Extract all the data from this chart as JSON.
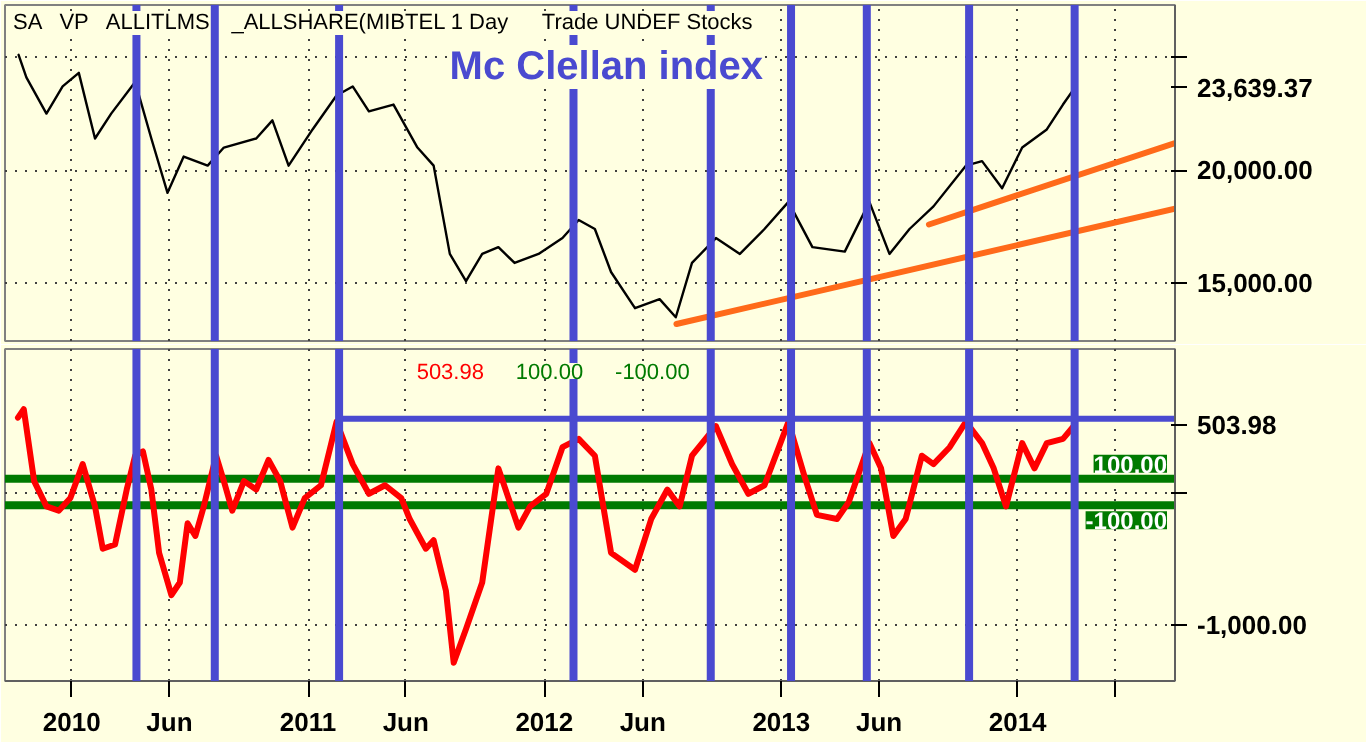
{
  "chart_data": [
    {
      "type": "line",
      "title": "Mc Clellan index",
      "annotations": [
        "SA",
        "VP",
        "ALLITLMS",
        "_ALLSHARE(MIBTEL 1 Day",
        "Trade UNDEF Stocks"
      ],
      "series": [
        {
          "color": "#000000",
          "x": [
            "2009-10-11",
            "2009-10-23",
            "2009-11-23",
            "2009-12-18",
            "2010-01-12",
            "2010-02-06",
            "2010-03-03",
            "2010-04-09",
            "2010-05-04",
            "2010-05-29",
            "2010-06-23",
            "2010-07-30",
            "2010-08-24",
            "2010-10-13",
            "2010-11-07",
            "2010-12-02",
            "2011-01-08",
            "2011-02-14",
            "2011-03-11",
            "2011-04-05",
            "2011-05-13",
            "2011-06-19",
            "2011-07-14",
            "2011-08-08",
            "2011-09-02",
            "2011-09-27",
            "2011-10-22",
            "2011-11-16",
            "2011-12-23",
            "2012-01-29",
            "2012-02-23",
            "2012-03-19",
            "2012-04-13",
            "2012-05-20",
            "2012-06-27",
            "2012-07-22",
            "2012-08-16",
            "2012-09-22",
            "2012-10-29",
            "2012-12-06",
            "2013-01-12",
            "2013-02-18",
            "2013-04-09",
            "2013-05-17",
            "2013-06-17",
            "2013-07-18",
            "2013-08-24",
            "2013-10-13",
            "2013-11-07",
            "2013-12-08",
            "2014-01-08",
            "2014-02-15",
            "2014-03-12",
            "2014-03-30"
          ],
          "values": [
            25100,
            24100,
            22500,
            23700,
            24300,
            21400,
            22500,
            23900,
            21400,
            19000,
            20600,
            20200,
            21000,
            21400,
            22200,
            20200,
            21800,
            23300,
            23700,
            22600,
            22900,
            21000,
            20200,
            16300,
            15100,
            16300,
            16600,
            15900,
            16300,
            17000,
            17800,
            17400,
            15500,
            13900,
            14300,
            13500,
            15900,
            17000,
            16300,
            17400,
            18600,
            16600,
            16400,
            18600,
            16300,
            17400,
            18400,
            20200,
            20400,
            19200,
            21000,
            21800,
            22900,
            23639.37
          ]
        },
        {
          "type": "line",
          "color": "#ff6a1a",
          "x": [
            "2012-07-23",
            "2014-09-01"
          ],
          "values": [
            13200,
            18300
          ]
        },
        {
          "type": "line",
          "color": "#ff6a1a",
          "x": [
            "2013-08-17",
            "2014-09-01"
          ],
          "values": [
            17600,
            21200
          ]
        }
      ],
      "xlim": [
        "2009-09-20",
        "2014-09-01"
      ],
      "xticks": [
        {
          "value": "2010-01-01",
          "label": null
        },
        {
          "value": "2010-06-01",
          "label": null
        },
        {
          "value": "2011-01-01",
          "label": null
        },
        {
          "value": "2011-06-01",
          "label": null
        },
        {
          "value": "2012-01-01",
          "label": null
        },
        {
          "value": "2012-06-01",
          "label": null
        },
        {
          "value": "2013-01-01",
          "label": null
        },
        {
          "value": "2013-06-01",
          "label": null
        },
        {
          "value": "2014-01-01",
          "label": null
        },
        {
          "value": "2014-06-01",
          "label": null
        }
      ],
      "ylim": [
        12450,
        27300
      ],
      "yticks": [
        {
          "value": 15000,
          "label": "15,000.00"
        },
        {
          "value": 20000,
          "label": "20,000.00"
        },
        {
          "value": 25000,
          "label": null
        },
        {
          "value": 23639.37,
          "label": "23,639.37"
        }
      ],
      "tick_labels": "y",
      "grid": true,
      "ref_lines": [
        {
          "axis": "x",
          "value": "2010-04-11",
          "color": "#4a4ad0"
        },
        {
          "axis": "x",
          "value": "2010-08-10",
          "color": "#4a4ad0"
        },
        {
          "axis": "x",
          "value": "2011-02-18",
          "color": "#4a4ad0"
        },
        {
          "axis": "x",
          "value": "2012-02-15",
          "color": "#4a4ad0"
        },
        {
          "axis": "x",
          "value": "2012-09-14",
          "color": "#4a4ad0"
        },
        {
          "axis": "x",
          "value": "2013-01-16",
          "color": "#4a4ad0"
        },
        {
          "axis": "x",
          "value": "2013-05-13",
          "color": "#4a4ad0"
        },
        {
          "axis": "x",
          "value": "2013-10-18",
          "color": "#4a4ad0"
        },
        {
          "axis": "x",
          "value": "2014-03-30",
          "color": "#4a4ad0"
        }
      ]
    },
    {
      "type": "line",
      "annotations": [
        "503.98",
        "100.00",
        "-100.00"
      ],
      "series": [
        {
          "color": "#ff0000",
          "x": [
            "2009-10-10",
            "2009-10-19",
            "2009-11-04",
            "2009-11-23",
            "2009-12-12",
            "2009-12-30",
            "2010-01-18",
            "2010-02-06",
            "2010-02-18",
            "2010-03-09",
            "2010-03-27",
            "2010-04-09",
            "2010-04-21",
            "2010-05-04",
            "2010-05-16",
            "2010-06-04",
            "2010-06-17",
            "2010-06-29",
            "2010-07-11",
            "2010-07-24",
            "2010-08-12",
            "2010-08-24",
            "2010-09-06",
            "2010-09-24",
            "2010-10-13",
            "2010-11-01",
            "2010-11-19",
            "2010-12-08",
            "2010-12-27",
            "2011-01-21",
            "2011-02-14",
            "2011-03-11",
            "2011-04-05",
            "2011-04-30",
            "2011-05-25",
            "2011-06-07",
            "2011-07-02",
            "2011-07-14",
            "2011-08-02",
            "2011-08-14",
            "2011-09-02",
            "2011-09-27",
            "2011-10-22",
            "2011-11-22",
            "2011-12-10",
            "2012-01-04",
            "2012-01-29",
            "2012-02-23",
            "2012-03-19",
            "2012-04-13",
            "2012-05-20",
            "2012-06-14",
            "2012-07-09",
            "2012-07-28",
            "2012-08-16",
            "2012-09-22",
            "2012-10-17",
            "2012-11-11",
            "2012-12-06",
            "2013-01-12",
            "2013-02-06",
            "2013-02-25",
            "2013-03-28",
            "2013-04-15",
            "2013-05-17",
            "2013-06-04",
            "2013-06-23",
            "2013-07-12",
            "2013-08-06",
            "2013-08-24",
            "2013-09-18",
            "2013-10-13",
            "2013-11-07",
            "2013-11-25",
            "2013-12-14",
            "2014-01-08",
            "2014-01-27",
            "2014-02-15",
            "2014-03-12",
            "2014-03-30"
          ],
          "values": [
            559,
            622,
            82,
            -108,
            -140,
            -45,
            210,
            -108,
            -426,
            -394,
            19,
            273,
            305,
            19,
            -457,
            -775,
            -680,
            -235,
            -330,
            -108,
            273,
            82,
            -140,
            82,
            19,
            241,
            82,
            -267,
            -45,
            51,
            527,
            210,
            -13,
            51,
            -45,
            -203,
            -426,
            -362,
            -743,
            -1283,
            -1029,
            -680,
            178,
            -267,
            -108,
            -13,
            337,
            400,
            273,
            -457,
            -584,
            -203,
            19,
            -108,
            273,
            495,
            210,
            -13,
            51,
            527,
            114,
            -172,
            -203,
            -76,
            368,
            178,
            -330,
            -203,
            273,
            210,
            337,
            527,
            368,
            178,
            -108,
            368,
            178,
            368,
            400,
            503.98
          ]
        },
        {
          "color": "#4a4ad0",
          "x": [
            "2011-02-18",
            "2014-09-01"
          ],
          "values": [
            550,
            550
          ]
        }
      ],
      "xlim": [
        "2009-09-20",
        "2014-09-01"
      ],
      "xticks": [
        {
          "value": "2010-01-01",
          "label": "2010"
        },
        {
          "value": "2010-06-01",
          "label": "Jun"
        },
        {
          "value": "2011-01-01",
          "label": "2011"
        },
        {
          "value": "2011-06-01",
          "label": "Jun"
        },
        {
          "value": "2012-01-01",
          "label": "2012"
        },
        {
          "value": "2012-06-01",
          "label": "Jun"
        },
        {
          "value": "2013-01-01",
          "label": "2013"
        },
        {
          "value": "2013-06-01",
          "label": "Jun"
        },
        {
          "value": "2014-01-01",
          "label": "2014"
        },
        {
          "value": "2014-06-01",
          "label": null
        }
      ],
      "ylim": [
        -1420,
        1075
      ],
      "yticks": [
        {
          "value": 0,
          "label": null
        },
        {
          "value": -1000,
          "label": "-1,000.00"
        },
        {
          "value": 503.98,
          "label": "503.98"
        }
      ],
      "grid": true,
      "ref_lines": [
        {
          "axis": "y",
          "value": 100,
          "label": "100.00",
          "color": "#007a00"
        },
        {
          "axis": "y",
          "value": -100,
          "label": "-100.00",
          "color": "#007a00"
        },
        {
          "axis": "x",
          "value": "2010-04-11",
          "color": "#4a4ad0"
        },
        {
          "axis": "x",
          "value": "2010-08-10",
          "color": "#4a4ad0"
        },
        {
          "axis": "x",
          "value": "2011-02-18",
          "color": "#4a4ad0"
        },
        {
          "axis": "x",
          "value": "2012-02-15",
          "color": "#4a4ad0"
        },
        {
          "axis": "x",
          "value": "2012-09-14",
          "color": "#4a4ad0"
        },
        {
          "axis": "x",
          "value": "2013-01-16",
          "color": "#4a4ad0"
        },
        {
          "axis": "x",
          "value": "2013-05-13",
          "color": "#4a4ad0"
        },
        {
          "axis": "x",
          "value": "2013-10-18",
          "color": "#4a4ad0"
        },
        {
          "axis": "x",
          "value": "2014-03-30",
          "color": "#4a4ad0"
        }
      ]
    }
  ]
}
